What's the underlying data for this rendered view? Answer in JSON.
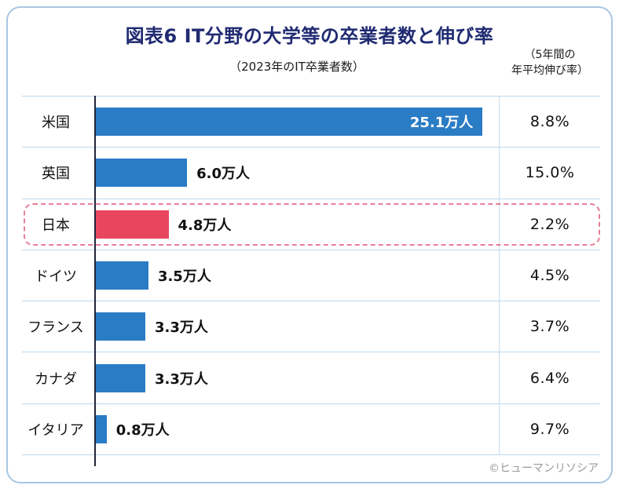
{
  "title": "図表6 IT分野の大学等の卒業者数と伸び率",
  "header_left": "（2023年のIT卒業者数）",
  "header_right_line1": "（5年間の",
  "header_right_line2": "年平均伸び率）",
  "footer": "©ヒューマンリソシア",
  "chart_data": {
    "type": "bar",
    "title": "図表6 IT分野の大学等の卒業者数と伸び率",
    "categories": [
      "米国",
      "英国",
      "日本",
      "ドイツ",
      "フランス",
      "カナダ",
      "イタリア"
    ],
    "values": [
      25.1,
      6.0,
      4.8,
      3.5,
      3.3,
      3.3,
      0.8
    ],
    "value_labels": [
      "25.1万人",
      "6.0万人",
      "4.8万人",
      "3.5万人",
      "3.3万人",
      "3.3万人",
      "0.8万人"
    ],
    "growth_rates": [
      "8.8%",
      "15.0%",
      "2.2%",
      "4.5%",
      "3.7%",
      "6.4%",
      "9.7%"
    ],
    "unit": "万人",
    "axis_max": 26.2,
    "highlight_index": 2,
    "label_inside": [
      true,
      false,
      false,
      false,
      false,
      false,
      false
    ],
    "legend_position": "none",
    "grid": "row-separators",
    "colors": {
      "bar": "#2a7cc5",
      "highlight_bar": "#e8465f",
      "highlight_border": "#e57f95",
      "title": "#202b72",
      "frame_border": "#a9c6e3",
      "separator": "#bdd7ec",
      "axis": "#23263a",
      "footer_text": "#9b9b9b"
    }
  }
}
